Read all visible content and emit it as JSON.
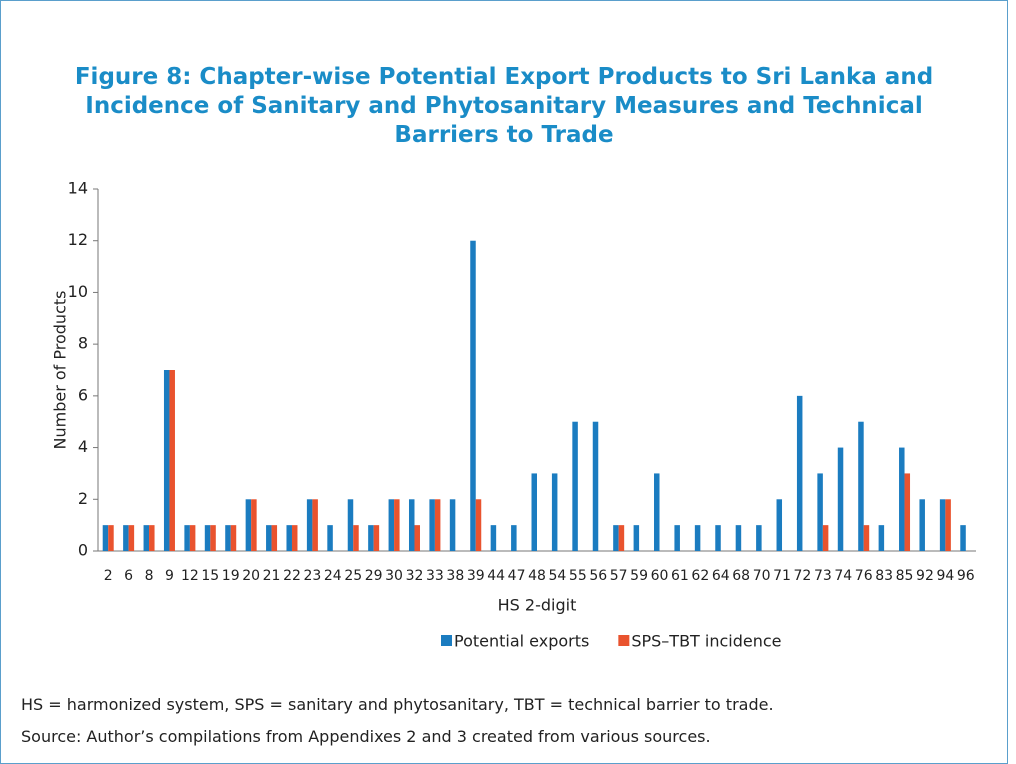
{
  "chart_data": {
    "type": "bar",
    "title": "Figure 8: Chapter-wise Potential Export Products to Sri Lanka and Incidence of Sanitary and Phytosanitary Measures and Technical Barriers to Trade",
    "xlabel": "HS 2-digit",
    "ylabel": "Number of Products",
    "categories": [
      "2",
      "6",
      "8",
      "9",
      "12",
      "15",
      "19",
      "20",
      "21",
      "22",
      "23",
      "24",
      "25",
      "29",
      "30",
      "32",
      "33",
      "38",
      "39",
      "44",
      "47",
      "48",
      "54",
      "55",
      "56",
      "57",
      "59",
      "60",
      "61",
      "62",
      "64",
      "68",
      "70",
      "71",
      "72",
      "73",
      "74",
      "76",
      "83",
      "85",
      "92",
      "94",
      "96"
    ],
    "series": [
      {
        "name": "Potential exports",
        "color": "#1b7cc0",
        "values": [
          1,
          1,
          1,
          7,
          1,
          1,
          1,
          2,
          1,
          1,
          2,
          1,
          2,
          1,
          2,
          2,
          2,
          2,
          12,
          1,
          1,
          3,
          3,
          5,
          5,
          1,
          1,
          3,
          1,
          1,
          1,
          1,
          1,
          2,
          6,
          3,
          4,
          5,
          1,
          4,
          2,
          2,
          1
        ]
      },
      {
        "name": "SPS–TBT incidence",
        "color": "#e9532e",
        "values": [
          1,
          1,
          1,
          7,
          1,
          1,
          1,
          2,
          1,
          1,
          2,
          0,
          1,
          1,
          2,
          1,
          2,
          0,
          2,
          0,
          0,
          0,
          0,
          0,
          0,
          1,
          0,
          0,
          0,
          0,
          0,
          0,
          0,
          0,
          0,
          1,
          0,
          1,
          0,
          3,
          0,
          2,
          0
        ]
      }
    ],
    "ylim": [
      0,
      14
    ],
    "yticks": [
      0,
      2,
      4,
      6,
      8,
      10,
      12,
      14
    ],
    "grid": false,
    "legend": "bottom",
    "notes": [
      "HS = harmonized system, SPS = sanitary and phytosanitary, TBT = technical barrier to trade.",
      "Source: Author’s compilations from Appendixes 2 and 3 created from various sources."
    ]
  }
}
